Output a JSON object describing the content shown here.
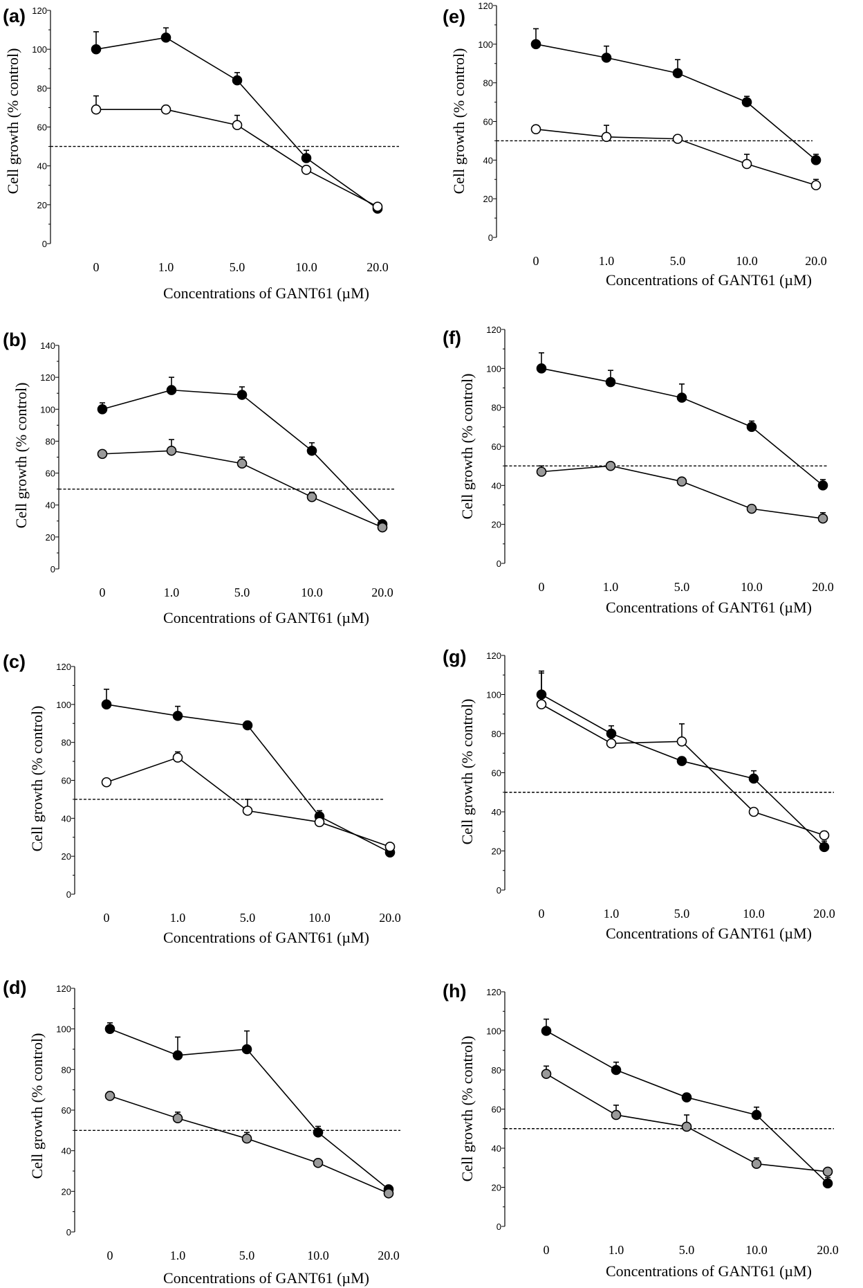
{
  "figure": {
    "chart_data": [
      {
        "panel": "(a)",
        "type": "line",
        "categories": [
          "0",
          "1.0",
          "5.0",
          "10.0",
          "20.0"
        ],
        "xlabel": "Concentrations of GANT61 (µM)",
        "ylabel": "Cell growth (% control)",
        "ylim": [
          0,
          120
        ],
        "yticks": [
          "0",
          "20",
          "40",
          "60",
          "80",
          "100",
          "120"
        ],
        "reference_line": 50,
        "series": [
          {
            "marker": "filled-black",
            "color": "#000000",
            "values": [
              100,
              106,
              84,
              44,
              18
            ],
            "err": [
              9,
              5,
              4,
              4,
              1
            ]
          },
          {
            "marker": "open-white",
            "color": "#ffffff",
            "values": [
              69,
              69,
              61,
              38,
              19
            ],
            "err": [
              7,
              2,
              5,
              2,
              1
            ]
          }
        ]
      },
      {
        "panel": "(b)",
        "type": "line",
        "categories": [
          "0",
          "1.0",
          "5.0",
          "10.0",
          "20.0"
        ],
        "xlabel": "Concentrations of GANT61 (µM)",
        "ylabel": "Cell growth (% control)",
        "ylim": [
          0,
          140
        ],
        "yticks": [
          "0",
          "20",
          "40",
          "60",
          "80",
          "100",
          "120",
          "140"
        ],
        "reference_line": 50,
        "series": [
          {
            "marker": "filled-black",
            "color": "#000000",
            "values": [
              100,
              112,
              109,
              74,
              28
            ],
            "err": [
              4,
              8,
              5,
              5,
              1
            ]
          },
          {
            "marker": "filled-gray",
            "color": "#9a9a9a",
            "values": [
              72,
              74,
              66,
              45,
              26
            ],
            "err": [
              2,
              7,
              4,
              3,
              1
            ]
          }
        ]
      },
      {
        "panel": "(c)",
        "type": "line",
        "categories": [
          "0",
          "1.0",
          "5.0",
          "10.0",
          "20.0"
        ],
        "xlabel": "Concentrations of GANT61 (µM)",
        "ylabel": "Cell growth (% control)",
        "ylim": [
          0,
          120
        ],
        "yticks": [
          "0",
          "20",
          "40",
          "60",
          "80",
          "100",
          "120"
        ],
        "reference_line": 50,
        "series": [
          {
            "marker": "filled-black",
            "color": "#000000",
            "values": [
              100,
              94,
              89,
              41,
              22
            ],
            "err": [
              8,
              5,
              2,
              3,
              2
            ]
          },
          {
            "marker": "open-white",
            "color": "#ffffff",
            "values": [
              59,
              72,
              44,
              38,
              25
            ],
            "err": [
              1,
              3,
              6,
              2,
              1
            ]
          }
        ]
      },
      {
        "panel": "(d)",
        "type": "line",
        "categories": [
          "0",
          "1.0",
          "5.0",
          "10.0",
          "20.0"
        ],
        "xlabel": "Concentrations of GANT61 (µM)",
        "ylabel": "Cell growth (% control)",
        "ylim": [
          0,
          120
        ],
        "yticks": [
          "0",
          "20",
          "40",
          "60",
          "80",
          "100",
          "120"
        ],
        "reference_line": 50,
        "series": [
          {
            "marker": "filled-black",
            "color": "#000000",
            "values": [
              100,
              87,
              90,
              49,
              21
            ],
            "err": [
              3,
              9,
              9,
              3,
              1
            ]
          },
          {
            "marker": "filled-gray",
            "color": "#9a9a9a",
            "values": [
              67,
              56,
              46,
              34,
              19
            ],
            "err": [
              2,
              3,
              3,
              1,
              1
            ]
          }
        ]
      },
      {
        "panel": "(e)",
        "type": "line",
        "categories": [
          "0",
          "1.0",
          "5.0",
          "10.0",
          "20.0"
        ],
        "xlabel": "Concentrations of GANT61 (µM)",
        "ylabel": "Cell growth (% control)",
        "ylim": [
          0,
          120
        ],
        "yticks": [
          "0",
          "20",
          "40",
          "60",
          "80",
          "100",
          "120"
        ],
        "reference_line": 50,
        "series": [
          {
            "marker": "filled-black",
            "color": "#000000",
            "values": [
              100,
              93,
              85,
              70,
              40
            ],
            "err": [
              8,
              6,
              7,
              3,
              3
            ]
          },
          {
            "marker": "open-white",
            "color": "#ffffff",
            "values": [
              56,
              52,
              51,
              38,
              27
            ],
            "err": [
              2,
              6,
              2,
              5,
              3
            ]
          }
        ]
      },
      {
        "panel": "(f)",
        "type": "line",
        "categories": [
          "0",
          "1.0",
          "5.0",
          "10.0",
          "20.0"
        ],
        "xlabel": "Concentrations of GANT61 (µM)",
        "ylabel": "Cell growth (% control)",
        "ylim": [
          0,
          120
        ],
        "yticks": [
          "0",
          "20",
          "40",
          "60",
          "80",
          "100",
          "120"
        ],
        "reference_line": 50,
        "series": [
          {
            "marker": "filled-black",
            "color": "#000000",
            "values": [
              100,
              93,
              85,
              70,
              40
            ],
            "err": [
              8,
              6,
              7,
              3,
              3
            ]
          },
          {
            "marker": "filled-gray",
            "color": "#9a9a9a",
            "values": [
              47,
              50,
              42,
              28,
              23
            ],
            "err": [
              3,
              1,
              1,
              1,
              3
            ]
          }
        ]
      },
      {
        "panel": "(g)",
        "type": "line",
        "categories": [
          "0",
          "1.0",
          "5.0",
          "10.0",
          "20.0"
        ],
        "xlabel": "Concentrations of GANT61 (µM)",
        "ylabel": "Cell growth (% control)",
        "ylim": [
          0,
          120
        ],
        "yticks": [
          "0",
          "20",
          "40",
          "60",
          "80",
          "100",
          "120"
        ],
        "reference_line": 50,
        "series": [
          {
            "marker": "filled-black",
            "color": "#000000",
            "values": [
              100,
              80,
              66,
              57,
              22
            ],
            "err": [
              12,
              4,
              2,
              4,
              3
            ]
          },
          {
            "marker": "open-white",
            "color": "#ffffff",
            "values": [
              95,
              75,
              76,
              40,
              28
            ],
            "err": [
              16,
              1,
              9,
              1,
              2
            ]
          }
        ]
      },
      {
        "panel": "(h)",
        "type": "line",
        "categories": [
          "0",
          "1.0",
          "5.0",
          "10.0",
          "20.0"
        ],
        "xlabel": "Concentrations of GANT61 (µM)",
        "ylabel": "Cell growth (% control)",
        "ylim": [
          0,
          120
        ],
        "yticks": [
          "0",
          "20",
          "40",
          "60",
          "80",
          "100",
          "120"
        ],
        "reference_line": 50,
        "series": [
          {
            "marker": "filled-black",
            "color": "#000000",
            "values": [
              100,
              80,
              66,
              57,
              22
            ],
            "err": [
              6,
              4,
              2,
              4,
              3
            ]
          },
          {
            "marker": "filled-gray",
            "color": "#9a9a9a",
            "values": [
              78,
              57,
              51,
              32,
              28
            ],
            "err": [
              4,
              5,
              6,
              3,
              1
            ]
          }
        ]
      }
    ]
  }
}
